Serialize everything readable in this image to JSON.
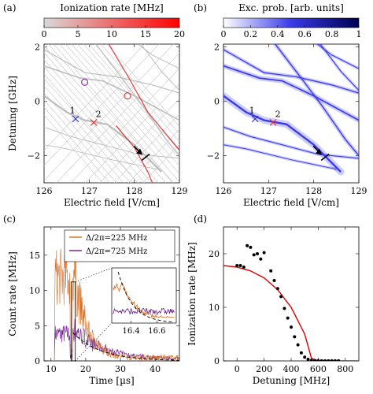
{
  "chart_data": [
    {
      "panel": "(a)",
      "type": "line",
      "colorbar": {
        "label": "Ionization rate [MHz]",
        "ticks": [
          "0",
          "5",
          "10",
          "15",
          "20"
        ],
        "range": [
          0,
          20
        ],
        "colors": [
          "#d9d9d9",
          "#ff0000"
        ]
      },
      "xlabel": "Electric field [V/cm]",
      "ylabel": "Detuning [GHz]",
      "xlim": [
        126,
        129
      ],
      "ylim": [
        -3,
        2.1
      ],
      "xticks": [
        "126",
        "127",
        "128",
        "129"
      ],
      "yticks": [
        "−2",
        "0",
        "2"
      ],
      "markers": [
        {
          "label": "1",
          "x": 126.7,
          "y": -0.65,
          "symbol": "x",
          "color": "#2c2cd8"
        },
        {
          "label": "2",
          "x": 127.1,
          "y": -0.78,
          "symbol": "x",
          "color": "#e03030"
        }
      ],
      "circles": [
        {
          "x": 126.9,
          "y": 0.7,
          "color": "#8a2c9a"
        },
        {
          "x": 127.85,
          "y": 0.2,
          "color": "#e04040"
        }
      ],
      "arrow": {
        "x": 128.2,
        "y": -2.0
      }
    },
    {
      "panel": "(b)",
      "type": "heatmap",
      "colorbar": {
        "label": "Exc. prob. [arb. units]",
        "ticks": [
          "0",
          "0.2",
          "0.4",
          "0.6",
          "0.8",
          "1"
        ],
        "range": [
          0,
          1
        ],
        "colors": [
          "#ffffff",
          "#000050"
        ]
      },
      "xlabel": "Electric field [V/cm]",
      "ylabel": "",
      "xlim": [
        126,
        129
      ],
      "ylim": [
        -3,
        2.1
      ],
      "xticks": [
        "126",
        "127",
        "128",
        "129"
      ],
      "yticks": [
        "−2",
        "0",
        "2"
      ],
      "markers": [
        {
          "label": "1",
          "x": 126.7,
          "y": -0.65,
          "symbol": "x",
          "color": "#2c2cd8"
        },
        {
          "label": "2",
          "x": 127.1,
          "y": -0.78,
          "symbol": "x",
          "color": "#e03030"
        }
      ],
      "arrow": {
        "x": 128.2,
        "y": -2.0
      }
    },
    {
      "panel": "(c)",
      "type": "line",
      "xlabel": "Time [µs]",
      "ylabel": "Count rate [MHz]",
      "xlim": [
        8,
        47
      ],
      "ylim": [
        0,
        19
      ],
      "xticks": [
        "10",
        "20",
        "30",
        "40"
      ],
      "yticks": [
        "0",
        "5",
        "10",
        "15"
      ],
      "series": [
        {
          "name": "Δ/2π=225 MHz",
          "color": "#d96a1e",
          "peak": 14,
          "decay": 3.5,
          "noise": 2.2
        },
        {
          "name": "Δ/2π=725 MHz",
          "color": "#6a1a8a",
          "peak": 4.5,
          "decay": 8.0,
          "noise": 1.2
        }
      ],
      "fit_color": "#000000",
      "inset": {
        "xticks": [
          "16.4",
          "16.6"
        ],
        "xlim": [
          16.25,
          16.75
        ],
        "ylim": [
          0,
          14
        ]
      }
    },
    {
      "panel": "(d)",
      "type": "scatter",
      "xlabel": "Detuning [MHz]",
      "ylabel": "Ionization rate [MHz]",
      "xlim": [
        -100,
        900
      ],
      "ylim": [
        0,
        25
      ],
      "xticks": [
        "0",
        "200",
        "400",
        "600",
        "800"
      ],
      "yticks": [
        "0",
        "10",
        "20"
      ],
      "x": [
        0,
        25,
        50,
        75,
        100,
        125,
        150,
        175,
        200,
        250,
        275,
        300,
        325,
        350,
        375,
        400,
        425,
        450,
        475,
        500,
        525,
        550,
        575,
        600,
        625,
        650,
        675,
        700,
        725,
        750
      ],
      "y": [
        17.8,
        17.8,
        17.5,
        21.5,
        21.2,
        19.8,
        20.0,
        19.0,
        20.2,
        16.8,
        15.0,
        13.5,
        12.0,
        9.8,
        8.0,
        6.3,
        4.5,
        3.0,
        1.5,
        0.7,
        0.3,
        0.1,
        0.05,
        0.03,
        0.02,
        0.02,
        0.02,
        0.02,
        0.02,
        0.02
      ],
      "fit": {
        "color": "#e00000",
        "x": [
          -100,
          0,
          100,
          200,
          300,
          400,
          500,
          550,
          600,
          700,
          900
        ],
        "y": [
          17.8,
          17.5,
          16.8,
          15.5,
          13.3,
          10.0,
          5.0,
          0.5,
          0,
          0,
          0
        ]
      }
    }
  ]
}
